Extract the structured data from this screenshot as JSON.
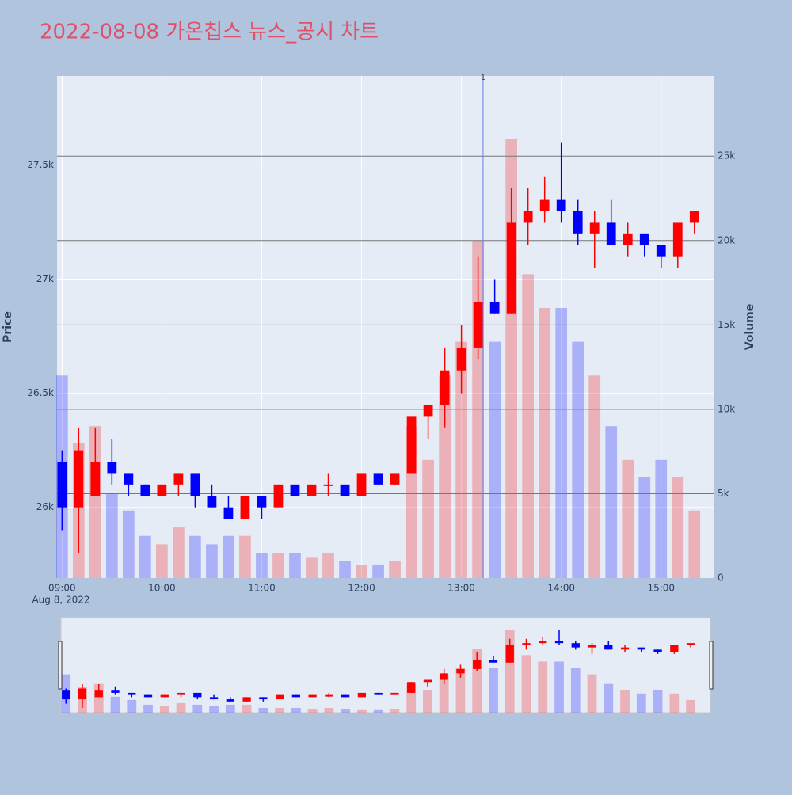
{
  "chart_data": {
    "type": "candlestick",
    "title": "2022-08-08 가온칩스 뉴스_공시 차트",
    "y_label": "Price",
    "y2_label": "Volume",
    "x_date_label": "Aug 8, 2022",
    "x": [
      "09:00",
      "09:10",
      "09:20",
      "09:30",
      "09:40",
      "09:50",
      "10:00",
      "10:10",
      "10:20",
      "10:30",
      "10:40",
      "10:50",
      "11:00",
      "11:10",
      "11:20",
      "11:30",
      "11:40",
      "11:50",
      "12:00",
      "12:10",
      "12:20",
      "12:30",
      "12:40",
      "12:50",
      "13:00",
      "13:10",
      "13:20",
      "13:30",
      "13:40",
      "13:50",
      "14:00",
      "14:10",
      "14:20",
      "14:30",
      "14:40",
      "14:50",
      "15:00",
      "15:10",
      "15:20"
    ],
    "open": [
      26200,
      26000,
      26050,
      26200,
      26150,
      26100,
      26050,
      26100,
      26150,
      26050,
      26000,
      25950,
      26050,
      26000,
      26100,
      26050,
      26100,
      26100,
      26050,
      26150,
      26100,
      26150,
      26400,
      26450,
      26600,
      26700,
      26900,
      26850,
      27250,
      27300,
      27350,
      27300,
      27200,
      27250,
      27150,
      27200,
      27150,
      27100,
      27250
    ],
    "high": [
      26250,
      26350,
      26350,
      26300,
      26150,
      26100,
      26100,
      26150,
      26150,
      26100,
      26050,
      26050,
      26050,
      26100,
      26100,
      26100,
      26150,
      26100,
      26150,
      26150,
      26150,
      26400,
      26450,
      26700,
      26800,
      27100,
      27000,
      27400,
      27400,
      27450,
      27600,
      27350,
      27300,
      27350,
      27250,
      27200,
      27150,
      27250,
      27300
    ],
    "low": [
      25900,
      25800,
      26050,
      26100,
      26050,
      26050,
      26050,
      26050,
      26000,
      26000,
      25950,
      25950,
      25950,
      26000,
      26050,
      26050,
      26050,
      26050,
      26050,
      26100,
      26100,
      26150,
      26300,
      26350,
      26500,
      26650,
      26850,
      26850,
      27150,
      27250,
      27250,
      27150,
      27050,
      27150,
      27100,
      27100,
      27050,
      27050,
      27200
    ],
    "close": [
      26000,
      26250,
      26200,
      26150,
      26100,
      26050,
      26100,
      26150,
      26050,
      26000,
      25950,
      26050,
      26000,
      26100,
      26050,
      26100,
      26100,
      26050,
      26150,
      26100,
      26150,
      26400,
      26450,
      26600,
      26700,
      26900,
      26850,
      27250,
      27300,
      27350,
      27300,
      27200,
      27250,
      27150,
      27200,
      27150,
      27100,
      27250,
      27300
    ],
    "volume": [
      12000,
      8000,
      9000,
      5000,
      4000,
      2500,
      2000,
      3000,
      2500,
      2000,
      2500,
      2500,
      1500,
      1500,
      1500,
      1200,
      1500,
      1000,
      800,
      800,
      1000,
      9000,
      7000,
      12000,
      14000,
      20000,
      14000,
      26000,
      18000,
      16000,
      16000,
      14000,
      12000,
      9000,
      7000,
      6000,
      7000,
      6000,
      4000
    ],
    "increasing_color": "#ff0000",
    "decreasing_color": "#0000ff",
    "xlim": [
      "08:57",
      "15:32"
    ],
    "xticks": [
      "09:00",
      "10:00",
      "11:00",
      "12:00",
      "13:00",
      "14:00",
      "15:00"
    ],
    "ylim": [
      25690,
      27890
    ],
    "yticks": [
      {
        "value": 26000,
        "label": "26k"
      },
      {
        "value": 26500,
        "label": "26.5k"
      },
      {
        "value": 27000,
        "label": "27k"
      },
      {
        "value": 27500,
        "label": "27.5k"
      }
    ],
    "y2lim": [
      0,
      29750
    ],
    "y2ticks": [
      0,
      {
        "value": 5000,
        "label": "5k"
      },
      {
        "value": 10000,
        "label": "10k"
      },
      {
        "value": 15000,
        "label": "15k"
      },
      {
        "value": 20000,
        "label": "20k"
      },
      {
        "value": 25000,
        "label": "25k"
      }
    ],
    "annotations": [
      {
        "x": "13:13",
        "text": "1"
      }
    ],
    "grid": true,
    "rangeslider": true
  }
}
